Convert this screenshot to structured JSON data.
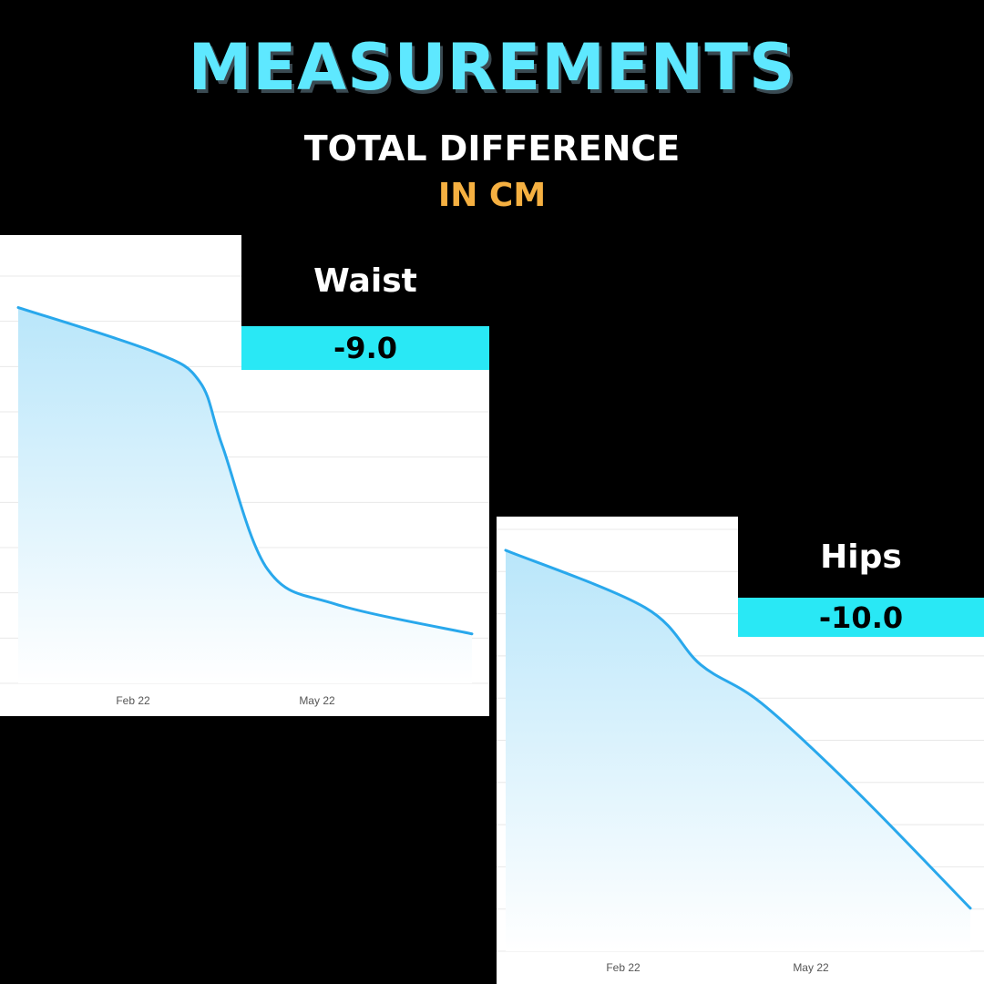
{
  "header": {
    "title": "MEASUREMENTS",
    "subtitle": "TOTAL DIFFERENCE",
    "unit_label": "IN CM"
  },
  "colors": {
    "title": "#5ee8ff",
    "unit": "#f5b041",
    "value_box": "#29e8f5",
    "line": "#29a8ec",
    "fill_top": "#b9e6fa",
    "grid": "#e8e8e8"
  },
  "chart_data": [
    {
      "type": "area",
      "name": "Waist",
      "difference": "-9.0",
      "x_tick_labels": [
        "Feb 22",
        "May 22"
      ],
      "x": [
        0,
        0.3,
        0.4,
        0.45,
        0.55,
        0.7,
        1.0
      ],
      "values": [
        100,
        91,
        85,
        72,
        47,
        40,
        34
      ],
      "ylim": [
        24,
        106
      ],
      "grid_lines": 10
    },
    {
      "type": "area",
      "name": "Hips",
      "difference": "-10.0",
      "x_tick_labels": [
        "Feb 22",
        "May 22"
      ],
      "x": [
        0,
        0.3,
        0.42,
        0.55,
        0.75,
        1.0
      ],
      "values": [
        100,
        88,
        76,
        68,
        50,
        25
      ],
      "ylim": [
        16,
        104
      ],
      "grid_lines": 11
    }
  ]
}
